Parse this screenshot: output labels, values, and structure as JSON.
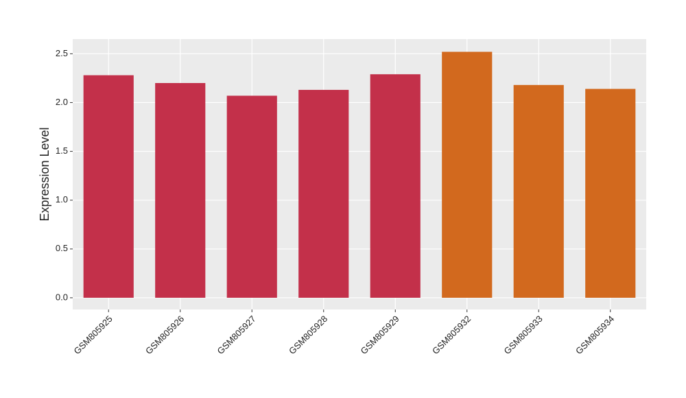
{
  "chart_data": {
    "type": "bar",
    "y_label": "Expression Level",
    "categories": [
      "GSM805925",
      "GSM805926",
      "GSM805927",
      "GSM805928",
      "GSM805929",
      "GSM805932",
      "GSM805933",
      "GSM805934"
    ],
    "values": [
      2.28,
      2.2,
      2.07,
      2.13,
      2.29,
      2.52,
      2.18,
      2.14
    ],
    "colors": [
      "#c3304a",
      "#c3304a",
      "#c3304a",
      "#c3304a",
      "#c3304a",
      "#d2691e",
      "#d2691e",
      "#d2691e"
    ],
    "ylim": [
      -0.12,
      2.65
    ],
    "yticks": [
      {
        "value": 0,
        "label": "0.0"
      },
      0.5,
      {
        "value": 1,
        "label": "1.0"
      },
      1.5,
      {
        "value": 2,
        "label": "2.0"
      },
      2.5
    ],
    "grid": true
  }
}
